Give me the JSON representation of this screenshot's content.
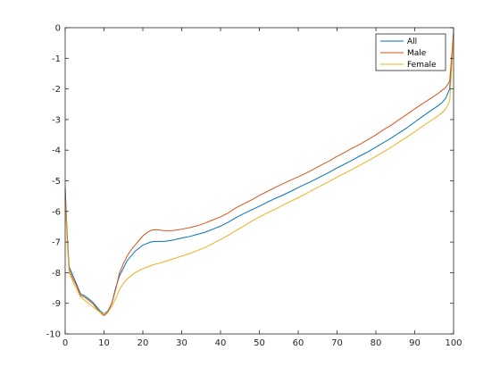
{
  "chart_data": {
    "type": "line",
    "xlim": [
      0,
      100
    ],
    "ylim": [
      -10,
      0
    ],
    "xticks": [
      0,
      10,
      20,
      30,
      40,
      50,
      60,
      70,
      80,
      90,
      100
    ],
    "yticks": [
      0,
      -1,
      -2,
      -3,
      -4,
      -5,
      -6,
      -7,
      -8,
      -9,
      -10
    ],
    "grid": false,
    "legend": {
      "placement": "top-right"
    },
    "series": [
      {
        "name": "All",
        "color": "#0072BD",
        "x": [
          0,
          0.5,
          1,
          2,
          3,
          4,
          5,
          6,
          7,
          8,
          9,
          10,
          11,
          12,
          13,
          14,
          15,
          16,
          17,
          18,
          19,
          20,
          21,
          22,
          23,
          24,
          25,
          26,
          27,
          28,
          29,
          30,
          32,
          34,
          36,
          38,
          40,
          42,
          44,
          46,
          48,
          50,
          52,
          54,
          56,
          58,
          60,
          62,
          64,
          66,
          68,
          70,
          72,
          74,
          76,
          78,
          80,
          82,
          84,
          86,
          88,
          90,
          92,
          94,
          96,
          97,
          98,
          99,
          100
        ],
        "y": [
          -5.2,
          -6.7,
          -7.8,
          -8.1,
          -8.4,
          -8.7,
          -8.75,
          -8.85,
          -8.95,
          -9.1,
          -9.25,
          -9.35,
          -9.25,
          -9.0,
          -8.5,
          -8.1,
          -7.85,
          -7.6,
          -7.45,
          -7.3,
          -7.2,
          -7.1,
          -7.05,
          -7.0,
          -6.98,
          -6.98,
          -6.98,
          -6.97,
          -6.95,
          -6.93,
          -6.9,
          -6.87,
          -6.82,
          -6.75,
          -6.68,
          -6.58,
          -6.48,
          -6.35,
          -6.2,
          -6.07,
          -5.95,
          -5.83,
          -5.7,
          -5.58,
          -5.47,
          -5.35,
          -5.22,
          -5.1,
          -4.98,
          -4.85,
          -4.72,
          -4.58,
          -4.45,
          -4.32,
          -4.18,
          -4.05,
          -3.9,
          -3.75,
          -3.6,
          -3.43,
          -3.27,
          -3.08,
          -2.9,
          -2.72,
          -2.55,
          -2.45,
          -2.3,
          -2.0,
          -0.2
        ]
      },
      {
        "name": "Male",
        "color": "#D95319",
        "x": [
          0,
          0.5,
          1,
          2,
          3,
          4,
          5,
          6,
          7,
          8,
          9,
          10,
          11,
          12,
          13,
          14,
          15,
          16,
          17,
          18,
          19,
          20,
          21,
          22,
          23,
          24,
          25,
          26,
          27,
          28,
          29,
          30,
          32,
          34,
          36,
          38,
          40,
          42,
          44,
          46,
          48,
          50,
          52,
          54,
          56,
          58,
          60,
          62,
          64,
          66,
          68,
          70,
          72,
          74,
          76,
          78,
          80,
          82,
          84,
          86,
          88,
          90,
          92,
          94,
          96,
          97,
          98,
          99,
          100
        ],
        "y": [
          -5.4,
          -6.8,
          -7.9,
          -8.2,
          -8.45,
          -8.75,
          -8.8,
          -8.9,
          -9.0,
          -9.15,
          -9.3,
          -9.4,
          -9.3,
          -9.0,
          -8.55,
          -8.0,
          -7.7,
          -7.45,
          -7.25,
          -7.1,
          -6.95,
          -6.8,
          -6.7,
          -6.62,
          -6.6,
          -6.6,
          -6.62,
          -6.63,
          -6.63,
          -6.62,
          -6.6,
          -6.58,
          -6.53,
          -6.47,
          -6.38,
          -6.28,
          -6.18,
          -6.05,
          -5.88,
          -5.75,
          -5.62,
          -5.48,
          -5.35,
          -5.22,
          -5.1,
          -4.98,
          -4.87,
          -4.75,
          -4.62,
          -4.48,
          -4.35,
          -4.2,
          -4.07,
          -3.93,
          -3.8,
          -3.65,
          -3.5,
          -3.33,
          -3.18,
          -3.0,
          -2.83,
          -2.65,
          -2.48,
          -2.32,
          -2.15,
          -2.05,
          -1.95,
          -1.75,
          -0.12
        ]
      },
      {
        "name": "Female",
        "color": "#EDB120",
        "x": [
          0,
          0.5,
          1,
          2,
          3,
          4,
          5,
          6,
          7,
          8,
          9,
          10,
          11,
          12,
          13,
          14,
          15,
          16,
          17,
          18,
          19,
          20,
          21,
          22,
          23,
          24,
          25,
          26,
          27,
          28,
          29,
          30,
          32,
          34,
          36,
          38,
          40,
          42,
          44,
          46,
          48,
          50,
          52,
          54,
          56,
          58,
          60,
          62,
          64,
          66,
          68,
          70,
          72,
          74,
          76,
          78,
          80,
          82,
          84,
          86,
          88,
          90,
          92,
          94,
          96,
          97,
          98,
          99,
          100
        ],
        "y": [
          -5.6,
          -7.0,
          -8.0,
          -8.3,
          -8.55,
          -8.8,
          -8.9,
          -9.0,
          -9.1,
          -9.2,
          -9.3,
          -9.35,
          -9.3,
          -9.1,
          -8.85,
          -8.55,
          -8.35,
          -8.2,
          -8.1,
          -8.0,
          -7.93,
          -7.87,
          -7.82,
          -7.77,
          -7.73,
          -7.7,
          -7.66,
          -7.62,
          -7.58,
          -7.54,
          -7.5,
          -7.46,
          -7.38,
          -7.28,
          -7.18,
          -7.05,
          -6.92,
          -6.78,
          -6.62,
          -6.48,
          -6.32,
          -6.18,
          -6.05,
          -5.93,
          -5.8,
          -5.67,
          -5.55,
          -5.42,
          -5.28,
          -5.15,
          -5.02,
          -4.88,
          -4.75,
          -4.62,
          -4.48,
          -4.35,
          -4.2,
          -4.05,
          -3.9,
          -3.73,
          -3.57,
          -3.4,
          -3.22,
          -3.05,
          -2.88,
          -2.78,
          -2.65,
          -2.4,
          -0.3
        ]
      }
    ]
  }
}
